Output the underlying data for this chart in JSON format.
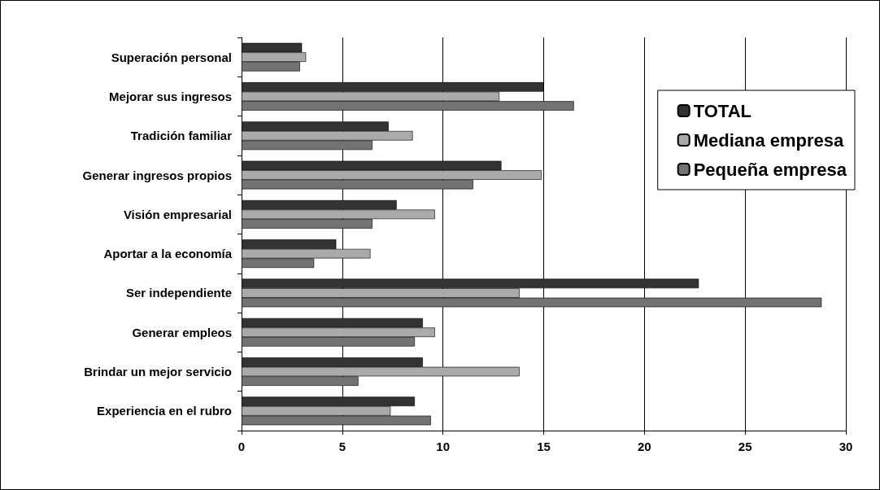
{
  "chart_data": {
    "type": "bar",
    "orientation": "horizontal",
    "categories": [
      "Superación personal",
      "Mejorar sus ingresos",
      "Tradición familiar",
      "Generar ingresos propios",
      "Visión empresarial",
      "Aportar a la economía",
      "Ser independiente",
      "Generar empleos",
      "Brindar un mejor servicio",
      "Experiencia en el rubro"
    ],
    "series": [
      {
        "name": "TOTAL",
        "color": "#333333",
        "values": [
          3.0,
          15.0,
          7.3,
          12.9,
          7.7,
          4.7,
          22.7,
          9.0,
          9.0,
          8.6
        ]
      },
      {
        "name": "Mediana empresa",
        "color": "#aaaaaa",
        "values": [
          3.2,
          12.8,
          8.5,
          14.9,
          9.6,
          6.4,
          13.8,
          9.6,
          13.8,
          7.4
        ]
      },
      {
        "name": "Pequeña empresa",
        "color": "#737373",
        "values": [
          2.9,
          16.5,
          6.5,
          11.5,
          6.5,
          3.6,
          28.8,
          8.6,
          5.8,
          9.4
        ]
      }
    ],
    "xlim": [
      0,
      30
    ],
    "xticks": [
      0,
      5,
      10,
      15,
      20,
      25,
      30
    ],
    "grid": "x",
    "legend": "top right"
  }
}
